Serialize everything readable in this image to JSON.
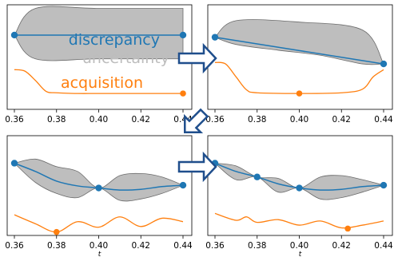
{
  "figure": {
    "legend": {
      "discrepancy": "discrepancy",
      "uncertainty": "uncertainty",
      "acquisition": "acquisition"
    },
    "colors": {
      "discrepancy": "#1f77b4",
      "uncertainty": "#bdbdbd",
      "acquisition": "#ff7f0e",
      "arrow": "#1f4e8c"
    },
    "x_axis": {
      "label": "t",
      "ticks": [
        "0.36",
        "0.38",
        "0.40",
        "0.42",
        "0.44"
      ],
      "tick_values": [
        0.36,
        0.38,
        0.4,
        0.42,
        0.44
      ],
      "range": [
        0.36,
        0.44
      ]
    },
    "arrows": [
      "right-arrow",
      "down-left-arrow",
      "right-arrow"
    ]
  },
  "chart_data": [
    {
      "type": "line",
      "panel": "top-left",
      "xlim": [
        0.36,
        0.44
      ],
      "observations": [
        [
          0.36,
          0.68
        ],
        [
          0.44,
          0.68
        ]
      ],
      "mean": [
        [
          0.36,
          0.68
        ],
        [
          0.44,
          0.68
        ]
      ],
      "band_upper": [
        [
          0.36,
          0.68
        ],
        [
          0.37,
          1.05
        ],
        [
          0.4,
          1.05
        ],
        [
          0.44,
          1.05
        ]
      ],
      "band_lower": [
        [
          0.36,
          0.68
        ],
        [
          0.37,
          0.35
        ],
        [
          0.4,
          0.35
        ],
        [
          0.44,
          0.35
        ]
      ],
      "acquisition": [
        [
          0.36,
          0.2
        ],
        [
          0.365,
          0.18
        ],
        [
          0.37,
          0.05
        ],
        [
          0.375,
          -0.1
        ],
        [
          0.38,
          -0.12
        ],
        [
          0.39,
          -0.13
        ],
        [
          0.4,
          -0.13
        ],
        [
          0.42,
          -0.13
        ],
        [
          0.44,
          -0.13
        ]
      ],
      "acquisition_selected": [
        0.44,
        -0.13
      ]
    },
    {
      "type": "line",
      "panel": "top-right",
      "xlim": [
        0.36,
        0.44
      ],
      "observations": [
        [
          0.36,
          0.65
        ],
        [
          0.44,
          0.28
        ]
      ],
      "mean": [
        [
          0.36,
          0.65
        ],
        [
          0.44,
          0.28
        ]
      ],
      "band_upper": [
        [
          0.36,
          0.65
        ],
        [
          0.37,
          0.88
        ],
        [
          0.4,
          0.86
        ],
        [
          0.43,
          0.75
        ],
        [
          0.44,
          0.28
        ]
      ],
      "band_lower": [
        [
          0.36,
          0.65
        ],
        [
          0.37,
          0.55
        ],
        [
          0.39,
          0.47
        ],
        [
          0.41,
          0.4
        ],
        [
          0.43,
          0.28
        ],
        [
          0.44,
          0.28
        ]
      ],
      "acquisition": [
        [
          0.36,
          0.3
        ],
        [
          0.365,
          0.28
        ],
        [
          0.37,
          0.1
        ],
        [
          0.375,
          -0.08
        ],
        [
          0.38,
          -0.12
        ],
        [
          0.4,
          -0.13
        ],
        [
          0.42,
          -0.12
        ],
        [
          0.43,
          -0.07
        ],
        [
          0.435,
          0.1
        ],
        [
          0.44,
          0.2
        ]
      ],
      "acquisition_selected": [
        0.4,
        -0.13
      ]
    },
    {
      "type": "line",
      "panel": "bottom-left",
      "xlim": [
        0.36,
        0.44
      ],
      "observations": [
        [
          0.36,
          0.7
        ],
        [
          0.4,
          0.34
        ],
        [
          0.44,
          0.38
        ]
      ],
      "mean": [
        [
          0.36,
          0.7
        ],
        [
          0.37,
          0.58
        ],
        [
          0.38,
          0.44
        ],
        [
          0.39,
          0.37
        ],
        [
          0.4,
          0.34
        ],
        [
          0.41,
          0.31
        ],
        [
          0.42,
          0.32
        ],
        [
          0.43,
          0.36
        ],
        [
          0.44,
          0.38
        ]
      ],
      "band_upper": [
        [
          0.36,
          0.7
        ],
        [
          0.37,
          0.76
        ],
        [
          0.38,
          0.65
        ],
        [
          0.39,
          0.58
        ],
        [
          0.4,
          0.34
        ],
        [
          0.41,
          0.52
        ],
        [
          0.42,
          0.55
        ],
        [
          0.43,
          0.5
        ],
        [
          0.44,
          0.38
        ]
      ],
      "band_lower": [
        [
          0.36,
          0.7
        ],
        [
          0.37,
          0.42
        ],
        [
          0.38,
          0.26
        ],
        [
          0.39,
          0.2
        ],
        [
          0.4,
          0.34
        ],
        [
          0.41,
          0.16
        ],
        [
          0.42,
          0.18
        ],
        [
          0.43,
          0.26
        ],
        [
          0.44,
          0.38
        ]
      ],
      "acquisition": [
        [
          0.36,
          -0.05
        ],
        [
          0.37,
          -0.18
        ],
        [
          0.38,
          -0.3
        ],
        [
          0.39,
          -0.15
        ],
        [
          0.4,
          -0.23
        ],
        [
          0.41,
          -0.08
        ],
        [
          0.42,
          -0.22
        ],
        [
          0.43,
          -0.1
        ],
        [
          0.44,
          -0.15
        ]
      ],
      "acquisition_selected": [
        0.38,
        -0.3
      ]
    },
    {
      "type": "line",
      "panel": "bottom-right",
      "xlim": [
        0.36,
        0.44
      ],
      "observations": [
        [
          0.36,
          0.7
        ],
        [
          0.38,
          0.5
        ],
        [
          0.4,
          0.34
        ],
        [
          0.44,
          0.38
        ]
      ],
      "mean": [
        [
          0.36,
          0.7
        ],
        [
          0.37,
          0.58
        ],
        [
          0.38,
          0.5
        ],
        [
          0.39,
          0.4
        ],
        [
          0.4,
          0.34
        ],
        [
          0.41,
          0.31
        ],
        [
          0.42,
          0.32
        ],
        [
          0.43,
          0.36
        ],
        [
          0.44,
          0.38
        ]
      ],
      "band_upper": [
        [
          0.36,
          0.7
        ],
        [
          0.37,
          0.66
        ],
        [
          0.38,
          0.5
        ],
        [
          0.39,
          0.48
        ],
        [
          0.4,
          0.34
        ],
        [
          0.41,
          0.5
        ],
        [
          0.42,
          0.52
        ],
        [
          0.43,
          0.46
        ],
        [
          0.44,
          0.38
        ]
      ],
      "band_lower": [
        [
          0.36,
          0.7
        ],
        [
          0.37,
          0.46
        ],
        [
          0.38,
          0.5
        ],
        [
          0.39,
          0.28
        ],
        [
          0.4,
          0.34
        ],
        [
          0.41,
          0.18
        ],
        [
          0.42,
          0.2
        ],
        [
          0.43,
          0.28
        ],
        [
          0.44,
          0.38
        ]
      ],
      "acquisition": [
        [
          0.36,
          -0.03
        ],
        [
          0.37,
          -0.13
        ],
        [
          0.375,
          -0.08
        ],
        [
          0.38,
          -0.16
        ],
        [
          0.39,
          -0.12
        ],
        [
          0.4,
          -0.2
        ],
        [
          0.41,
          -0.14
        ],
        [
          0.42,
          -0.24
        ],
        [
          0.43,
          -0.2
        ],
        [
          0.44,
          -0.14
        ]
      ],
      "acquisition_selected": [
        0.423,
        -0.25
      ]
    }
  ]
}
